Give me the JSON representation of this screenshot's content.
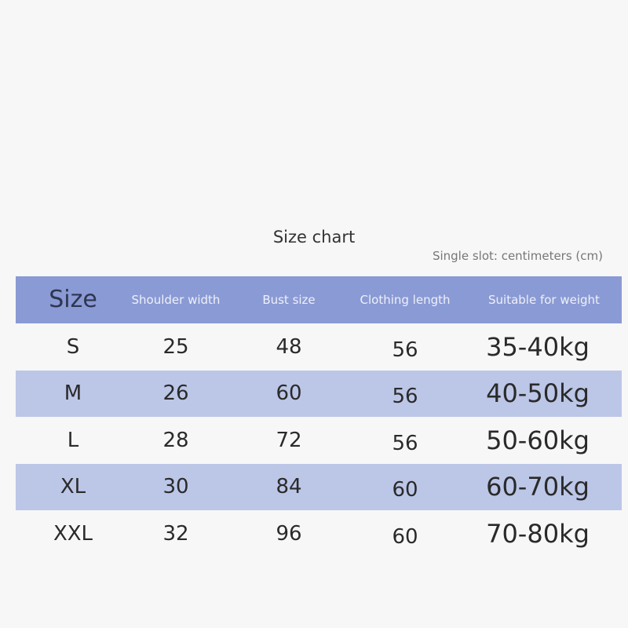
{
  "title": "Size chart",
  "unit_note": "Single slot: centimeters (cm)",
  "headers": [
    "Size",
    "Shoulder width",
    "Bust size",
    "Clothing length",
    "Suitable for weight"
  ],
  "rows": [
    [
      "S",
      "25",
      "48",
      "56",
      "35-40kg"
    ],
    [
      "M",
      "26",
      "60",
      "56",
      "40-50kg"
    ],
    [
      "L",
      "28",
      "72",
      "56",
      "50-60kg"
    ],
    [
      "XL",
      "30",
      "84",
      "60",
      "60-70kg"
    ],
    [
      "XXL",
      "32",
      "96",
      "60",
      "70-80kg"
    ]
  ],
  "colors": {
    "header": "#8a9ad5",
    "stripe": "#bcc6e7",
    "background": "#f7f7f7"
  }
}
